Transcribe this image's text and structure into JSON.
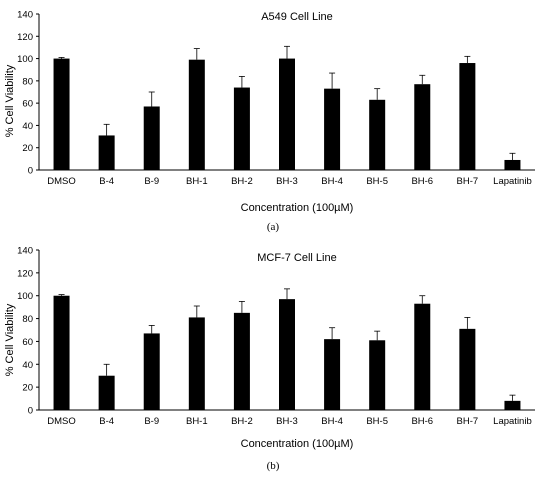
{
  "chart_data": [
    {
      "type": "bar",
      "panel": "(a)",
      "title": "A549 Cell Line",
      "xlabel": "Concentration (100µM)",
      "ylabel": "% Cell Viability",
      "ylim": [
        0,
        140
      ],
      "yticks": [
        "0",
        "20",
        "40",
        "60",
        "80",
        "100",
        "120",
        "140"
      ],
      "grid": false,
      "categories": [
        "DMSO",
        "B-4",
        "B-9",
        "BH-1",
        "BH-2",
        "BH-3",
        "BH-4",
        "BH-5",
        "BH-6",
        "BH-7",
        "Lapatinib"
      ],
      "values": [
        100,
        31,
        57,
        99,
        74,
        100,
        73,
        63,
        77,
        96,
        9
      ],
      "errors": [
        1,
        10,
        13,
        10,
        10,
        11,
        14,
        10,
        8,
        6,
        6
      ],
      "bar_color": "#000000"
    },
    {
      "type": "bar",
      "panel": "(b)",
      "title": "MCF-7 Cell Line",
      "xlabel": "Concentration (100µM)",
      "ylabel": "% Cell Viability",
      "ylim": [
        0,
        140
      ],
      "yticks": [
        "0",
        "20",
        "40",
        "60",
        "80",
        "100",
        "120",
        "140"
      ],
      "grid": false,
      "categories": [
        "DMSO",
        "B-4",
        "B-9",
        "BH-1",
        "BH-2",
        "BH-3",
        "BH-4",
        "BH-5",
        "BH-6",
        "BH-7",
        "Lapatinib"
      ],
      "values": [
        100,
        30,
        67,
        81,
        85,
        97,
        62,
        61,
        93,
        71,
        8
      ],
      "errors": [
        1,
        10,
        7,
        10,
        10,
        9,
        10,
        8,
        7,
        10,
        5
      ],
      "bar_color": "#000000"
    }
  ]
}
